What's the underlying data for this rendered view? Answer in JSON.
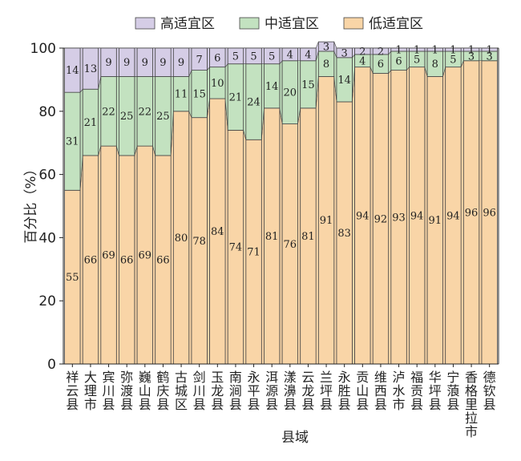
{
  "chart_data": {
    "type": "bar",
    "stacked": true,
    "xlabel": "县域",
    "ylabel": "百分比（%）",
    "ylim": [
      0,
      100
    ],
    "yticks": [
      0,
      20,
      40,
      60,
      80,
      100
    ],
    "legend_position": "top",
    "grid": false,
    "categories": [
      "祥云县",
      "大理市",
      "宾川县",
      "弥渡县",
      "巍山县",
      "鹤庆县",
      "古城区",
      "剑川县",
      "玉龙县",
      "南涧县",
      "永平县",
      "洱源县",
      "漾濞县",
      "云龙县",
      "兰坪县",
      "永胜县",
      "贡山县",
      "维西县",
      "泸水市",
      "福贡县",
      "华坪县",
      "宁蒗县",
      "香格里拉市",
      "德钦县"
    ],
    "series": [
      {
        "name": "低适宜区",
        "color": "#f9d5a7",
        "values": [
          55,
          66,
          69,
          66,
          69,
          66,
          80,
          78,
          84,
          74,
          71,
          81,
          76,
          81,
          91,
          83,
          94,
          92,
          93,
          94,
          91,
          94,
          96,
          96
        ]
      },
      {
        "name": "中适宜区",
        "color": "#c3e2c0",
        "values": [
          31,
          21,
          22,
          25,
          22,
          25,
          11,
          15,
          10,
          21,
          24,
          14,
          20,
          15,
          8,
          14,
          4,
          6,
          6,
          5,
          8,
          5,
          3,
          3
        ]
      },
      {
        "name": "高适宜区",
        "color": "#d5cde6",
        "values": [
          14,
          13,
          9,
          9,
          9,
          9,
          9,
          7,
          6,
          5,
          5,
          5,
          4,
          4,
          3,
          3,
          2,
          2,
          1,
          1,
          1,
          1,
          1,
          1
        ]
      }
    ]
  }
}
